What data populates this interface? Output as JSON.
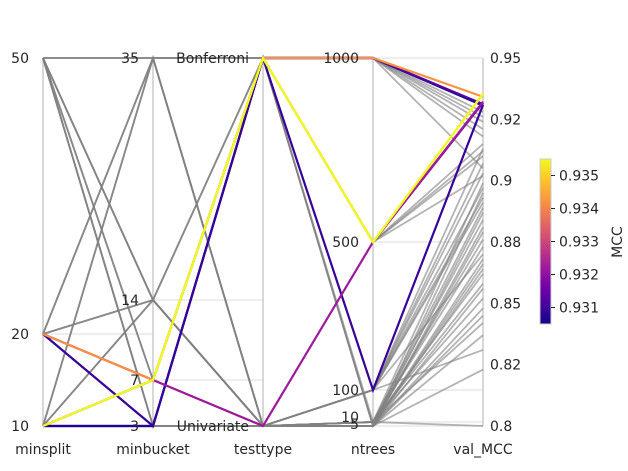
{
  "chart_data": {
    "type": "parallel_coordinates",
    "axes": [
      {
        "name": "minsplit",
        "ticks": [
          "50",
          "20",
          "10"
        ],
        "tick_values": [
          50,
          20,
          10
        ],
        "range": [
          10,
          50
        ]
      },
      {
        "name": "minbucket",
        "ticks": [
          "35",
          "14",
          "7",
          "3"
        ],
        "tick_values": [
          35,
          14,
          7,
          3
        ],
        "range": [
          3,
          35
        ]
      },
      {
        "name": "testtype",
        "ticks": [
          "Bonferroni",
          "Univariate"
        ],
        "tick_values": [
          1,
          0
        ],
        "range": [
          0,
          1
        ]
      },
      {
        "name": "ntrees",
        "ticks": [
          "1000",
          "500",
          "100",
          "10",
          "5"
        ],
        "tick_values": [
          1000,
          500,
          100,
          10,
          5
        ],
        "range": [
          5,
          1000
        ]
      },
      {
        "name": "val_MCC",
        "ticks": [
          "0.95",
          "0.92",
          "0.9",
          "0.88",
          "0.85",
          "0.82",
          "0.8"
        ],
        "tick_values": [
          0.95,
          0.925,
          0.9,
          0.875,
          0.85,
          0.825,
          0.8
        ],
        "range": [
          0.8,
          0.95
        ]
      }
    ],
    "colorbar": {
      "label": "MCC",
      "ticks": [
        "0.935",
        "0.934",
        "0.933",
        "0.932",
        "0.931"
      ],
      "tick_values": [
        0.935,
        0.934,
        0.933,
        0.932,
        0.931
      ],
      "range": [
        0.9305,
        0.9355
      ],
      "colormap": [
        "#0d0887",
        "#46039f",
        "#7201a8",
        "#9c179e",
        "#bd3786",
        "#d8576b",
        "#ed7953",
        "#fb9f3a",
        "#fdca26",
        "#f0f921"
      ]
    },
    "grey_color": "#808080",
    "highlighted_runs": [
      {
        "minsplit": 10,
        "minbucket": 7,
        "testtype": 1,
        "ntrees": 500,
        "val_MCC": 0.9355
      },
      {
        "minsplit": 10,
        "minbucket": 7,
        "testtype": 1,
        "ntrees": 500,
        "val_MCC": 0.9353
      },
      {
        "minsplit": 20,
        "minbucket": 7,
        "testtype": 1,
        "ntrees": 1000,
        "val_MCC": 0.9342
      },
      {
        "minsplit": 20,
        "minbucket": 7,
        "testtype": 0,
        "ntrees": 500,
        "val_MCC": 0.9322
      },
      {
        "minsplit": 10,
        "minbucket": 7,
        "testtype": 1,
        "ntrees": 500,
        "val_MCC": 0.9318
      },
      {
        "minsplit": 10,
        "minbucket": 7,
        "testtype": 1,
        "ntrees": 1000,
        "val_MCC": 0.9312
      },
      {
        "minsplit": 20,
        "minbucket": 3,
        "testtype": 1,
        "ntrees": 100,
        "val_MCC": 0.9309
      },
      {
        "minsplit": 10,
        "minbucket": 3,
        "testtype": 1,
        "ntrees": 1000,
        "val_MCC": 0.9307
      },
      {
        "minsplit": 10,
        "minbucket": 3,
        "testtype": 1,
        "ntrees": 1000,
        "val_MCC": 0.9306
      }
    ],
    "other_runs": [
      {
        "minsplit": 50,
        "minbucket": 3,
        "testtype": 1,
        "ntrees": 10,
        "val_MCC": 0.8
      },
      {
        "minsplit": 50,
        "minbucket": 3,
        "testtype": 1,
        "ntrees": 5,
        "val_MCC": 0.823
      },
      {
        "minsplit": 50,
        "minbucket": 7,
        "testtype": 0,
        "ntrees": 100,
        "val_MCC": 0.831
      },
      {
        "minsplit": 50,
        "minbucket": 14,
        "testtype": 0,
        "ntrees": 10,
        "val_MCC": 0.842
      },
      {
        "minsplit": 50,
        "minbucket": 35,
        "testtype": 1,
        "ntrees": 5,
        "val_MCC": 0.856
      },
      {
        "minsplit": 20,
        "minbucket": 3,
        "testtype": 1,
        "ntrees": 1000,
        "val_MCC": 0.905
      },
      {
        "minsplit": 20,
        "minbucket": 35,
        "testtype": 0,
        "ntrees": 10,
        "val_MCC": 0.862
      },
      {
        "minsplit": 20,
        "minbucket": 14,
        "testtype": 0,
        "ntrees": 100,
        "val_MCC": 0.87
      },
      {
        "minsplit": 20,
        "minbucket": 7,
        "testtype": 1,
        "ntrees": 500,
        "val_MCC": 0.915
      },
      {
        "minsplit": 10,
        "minbucket": 35,
        "testtype": 0,
        "ntrees": 10,
        "val_MCC": 0.876
      },
      {
        "minsplit": 10,
        "minbucket": 14,
        "testtype": 0,
        "ntrees": 5,
        "val_MCC": 0.881
      },
      {
        "minsplit": 10,
        "minbucket": 7,
        "testtype": 1,
        "ntrees": 100,
        "val_MCC": 0.893
      },
      {
        "minsplit": 10,
        "minbucket": 3,
        "testtype": 1,
        "ntrees": 1000,
        "val_MCC": 0.918
      },
      {
        "minsplit": 50,
        "minbucket": 14,
        "testtype": 0,
        "ntrees": 5,
        "val_MCC": 0.887
      },
      {
        "minsplit": 20,
        "minbucket": 3,
        "testtype": 1,
        "ntrees": 500,
        "val_MCC": 0.91
      },
      {
        "minsplit": 10,
        "minbucket": 3,
        "testtype": 0,
        "ntrees": 10,
        "val_MCC": 0.899
      },
      {
        "minsplit": 50,
        "minbucket": 7,
        "testtype": 1,
        "ntrees": 1000,
        "val_MCC": 0.921
      },
      {
        "minsplit": 20,
        "minbucket": 14,
        "testtype": 1,
        "ntrees": 1000,
        "val_MCC": 0.924
      },
      {
        "minsplit": 10,
        "minbucket": 35,
        "testtype": 1,
        "ntrees": 500,
        "val_MCC": 0.912
      },
      {
        "minsplit": 50,
        "minbucket": 3,
        "testtype": 0,
        "ntrees": 5,
        "val_MCC": 0.866
      },
      {
        "minsplit": 20,
        "minbucket": 35,
        "testtype": 1,
        "ntrees": 5,
        "val_MCC": 0.848
      },
      {
        "minsplit": 10,
        "minbucket": 14,
        "testtype": 1,
        "ntrees": 1000,
        "val_MCC": 0.928
      },
      {
        "minsplit": 50,
        "minbucket": 35,
        "testtype": 0,
        "ntrees": 10,
        "val_MCC": 0.858
      },
      {
        "minsplit": 20,
        "minbucket": 7,
        "testtype": 0,
        "ntrees": 5,
        "val_MCC": 0.837
      },
      {
        "minsplit": 10,
        "minbucket": 7,
        "testtype": 0,
        "ntrees": 10,
        "val_MCC": 0.884
      },
      {
        "minsplit": 50,
        "minbucket": 14,
        "testtype": 1,
        "ntrees": 500,
        "val_MCC": 0.902
      },
      {
        "minsplit": 20,
        "minbucket": 3,
        "testtype": 0,
        "ntrees": 10,
        "val_MCC": 0.889
      },
      {
        "minsplit": 10,
        "minbucket": 3,
        "testtype": 0,
        "ntrees": 5,
        "val_MCC": 0.895
      },
      {
        "minsplit": 50,
        "minbucket": 7,
        "testtype": 0,
        "ntrees": 10,
        "val_MCC": 0.873
      },
      {
        "minsplit": 20,
        "minbucket": 14,
        "testtype": 0,
        "ntrees": 5,
        "val_MCC": 0.879
      },
      {
        "minsplit": 10,
        "minbucket": 35,
        "testtype": 0,
        "ntrees": 5,
        "val_MCC": 0.868
      },
      {
        "minsplit": 50,
        "minbucket": 3,
        "testtype": 1,
        "ntrees": 100,
        "val_MCC": 0.907
      },
      {
        "minsplit": 20,
        "minbucket": 35,
        "testtype": 0,
        "ntrees": 100,
        "val_MCC": 0.897
      },
      {
        "minsplit": 10,
        "minbucket": 14,
        "testtype": 0,
        "ntrees": 100,
        "val_MCC": 0.913
      },
      {
        "minsplit": 50,
        "minbucket": 35,
        "testtype": 1,
        "ntrees": 1000,
        "val_MCC": 0.926
      },
      {
        "minsplit": 20,
        "minbucket": 7,
        "testtype": 0,
        "ntrees": 10,
        "val_MCC": 0.852
      },
      {
        "minsplit": 10,
        "minbucket": 7,
        "testtype": 0,
        "ntrees": 5,
        "val_MCC": 0.845
      },
      {
        "minsplit": 50,
        "minbucket": 14,
        "testtype": 0,
        "ntrees": 100,
        "val_MCC": 0.891
      },
      {
        "minsplit": 20,
        "minbucket": 3,
        "testtype": 0,
        "ntrees": 5,
        "val_MCC": 0.864
      },
      {
        "minsplit": 10,
        "minbucket": 3,
        "testtype": 0,
        "ntrees": 100,
        "val_MCC": 0.903
      }
    ]
  }
}
